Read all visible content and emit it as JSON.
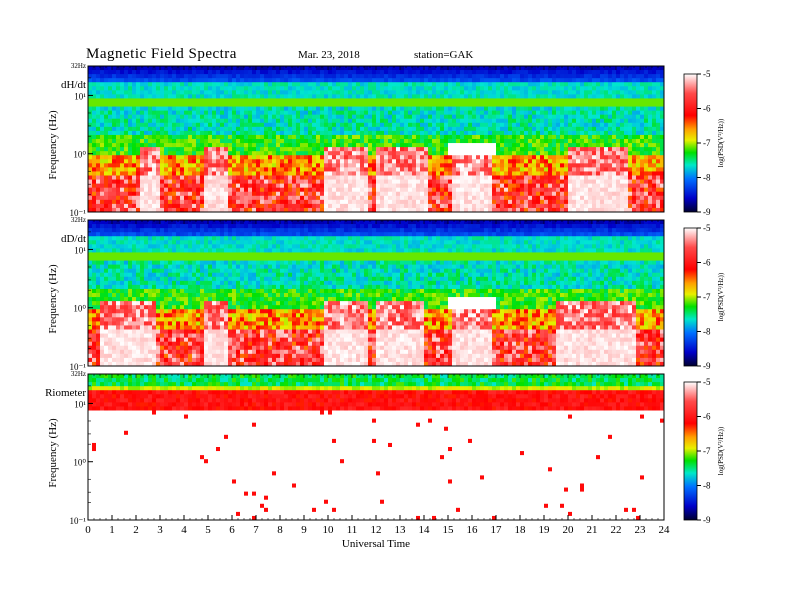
{
  "header": {
    "title": "Magnetic  Field  Spectra",
    "date": "Mar. 23, 2018",
    "station": "station=GAK"
  },
  "chart_data": [
    {
      "type": "heatmap",
      "panel_label": "dH/dt",
      "ylabel": "Frequency  (Hz)",
      "y_scale": "log",
      "y_ticks": [
        "32Hz",
        "10¹",
        "10⁰",
        "10⁻¹"
      ],
      "ylim_hz": [
        0.1,
        32
      ],
      "xlim_hours": [
        0,
        24
      ],
      "colorbar": {
        "label": "log(PSD(V²/Hz))",
        "ticks": [
          "-5",
          "-6",
          "-7",
          "-8",
          "-9"
        ],
        "range": [
          -9,
          -5
        ]
      },
      "features": {
        "dark_band_hz": [
          16,
          32
        ],
        "bright_line_hz": 7.8,
        "quiet_white_periods_hours": [
          [
            2.2,
            3.0
          ],
          [
            4.8,
            5.8
          ],
          [
            9.8,
            11.7
          ],
          [
            12.0,
            14.2
          ],
          [
            15.1,
            16.8
          ],
          [
            20.0,
            22.5
          ]
        ]
      }
    },
    {
      "type": "heatmap",
      "panel_label": "dD/dt",
      "ylabel": "Frequency  (Hz)",
      "y_scale": "log",
      "y_ticks": [
        "32Hz",
        "10¹",
        "10⁰",
        "10⁻¹"
      ],
      "ylim_hz": [
        0.1,
        32
      ],
      "xlim_hours": [
        0,
        24
      ],
      "colorbar": {
        "label": "log(PSD(V²/Hz))",
        "ticks": [
          "-5",
          "-6",
          "-7",
          "-8",
          "-9"
        ],
        "range": [
          -9,
          -5
        ]
      },
      "features": {
        "dark_band_hz": [
          16,
          32
        ],
        "bright_line_hz": 7.8,
        "quiet_white_periods_hours": [
          [
            0.5,
            2.8
          ],
          [
            4.9,
            5.9
          ],
          [
            9.8,
            11.7
          ],
          [
            12.0,
            14.0
          ],
          [
            15.1,
            16.8
          ],
          [
            19.5,
            22.8
          ]
        ]
      }
    },
    {
      "type": "heatmap",
      "panel_label": "Riometer",
      "ylabel": "Frequency  (Hz)",
      "xlabel": "Universal Time",
      "y_scale": "log",
      "y_ticks": [
        "32Hz",
        "10¹",
        "10⁰",
        "10⁻¹"
      ],
      "ylim_hz": [
        0.1,
        32
      ],
      "xlim_hours": [
        0,
        24
      ],
      "x_ticks": [
        "0",
        "1",
        "2",
        "3",
        "4",
        "5",
        "6",
        "7",
        "8",
        "9",
        "10",
        "11",
        "12",
        "13",
        "14",
        "15",
        "16",
        "17",
        "18",
        "19",
        "20",
        "21",
        "22",
        "23",
        "24"
      ],
      "colorbar": {
        "label": "log(PSD(V²/Hz))",
        "ticks": [
          "-5",
          "-6",
          "-7",
          "-8",
          "-9"
        ],
        "range": [
          -9,
          -5
        ]
      },
      "features": {
        "green_band_hz": [
          16,
          32
        ],
        "red_band_hz": [
          8,
          16
        ]
      }
    }
  ]
}
